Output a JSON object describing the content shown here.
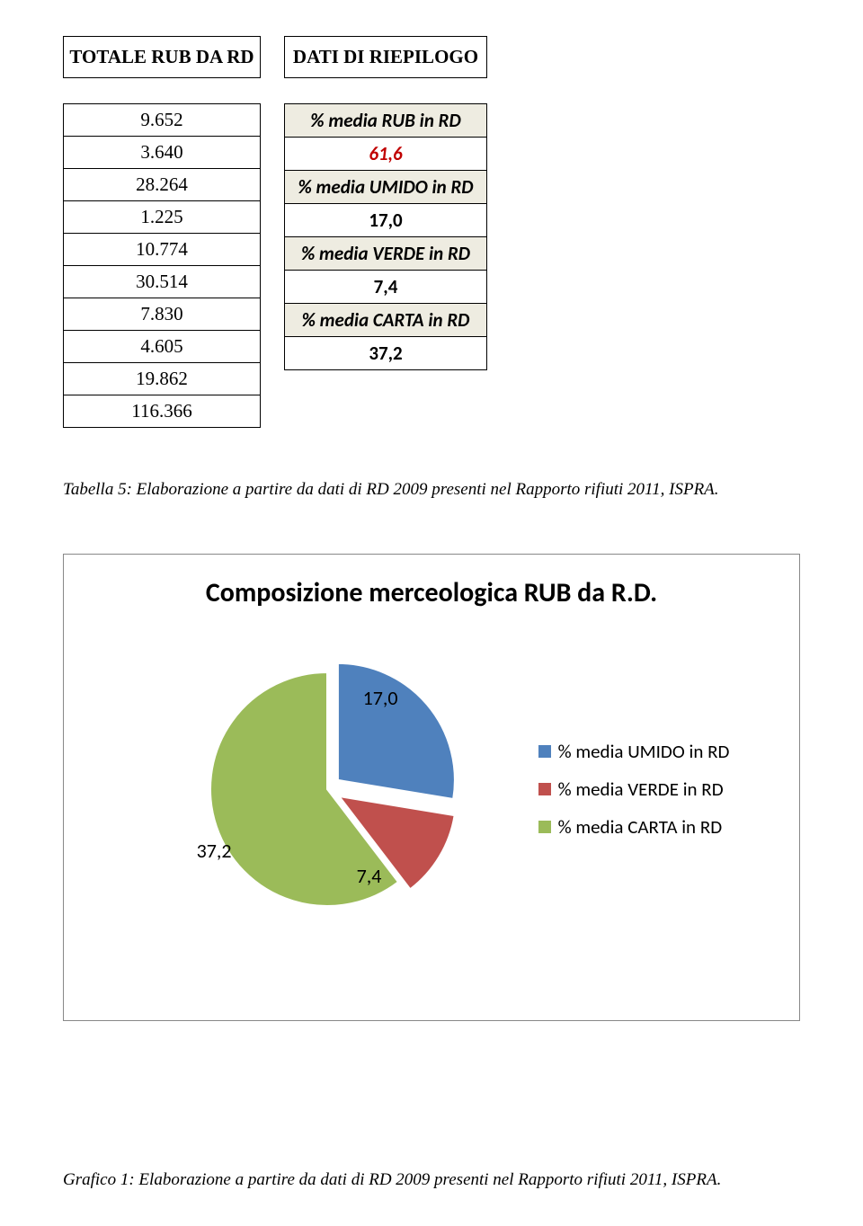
{
  "table": {
    "header_left": "TOTALE RUB DA RD",
    "header_right": "DATI DI RIEPILOGO",
    "left_values": [
      "9.652",
      "3.640",
      "28.264",
      "1.225",
      "10.774",
      "30.514",
      "7.830",
      "4.605",
      "19.862",
      "116.366"
    ],
    "right_rows": [
      {
        "text": "% media RUB in RD",
        "kind": "shade"
      },
      {
        "text": "61,6",
        "kind": "red"
      },
      {
        "text": "% media UMIDO in RD",
        "kind": "shade"
      },
      {
        "text": "17,0",
        "kind": "bold"
      },
      {
        "text": "% media VERDE in RD",
        "kind": "shade"
      },
      {
        "text": "7,4",
        "kind": "bold"
      },
      {
        "text": "% media CARTA in RD",
        "kind": "shade"
      },
      {
        "text": "37,2",
        "kind": "bold"
      }
    ]
  },
  "caption_table": "Tabella 5: Elaborazione a partire da dati di RD 2009 presenti nel Rapporto rifiuti 2011, ISPRA.",
  "chart": {
    "type": "pie",
    "title": "Composizione merceologica RUB da R.D.",
    "slices": [
      {
        "label": "% media UMIDO in RD",
        "value": 17.0,
        "display": "17,0",
        "color": "#4f81bd",
        "explode": 0.12
      },
      {
        "label": "% media VERDE in RD",
        "value": 7.4,
        "display": "7,4",
        "color": "#c0504d",
        "explode": 0.12
      },
      {
        "label": "% media CARTA in RD",
        "value": 37.2,
        "display": "37,2",
        "color": "#9bbb59",
        "explode": 0
      }
    ],
    "background_color": "#ffffff",
    "border_color": "#888888",
    "label_fontsize": 22,
    "title_fontsize": 30,
    "legend_fontsize": 21,
    "stroke_color": "#ffffff",
    "stroke_width": 2
  },
  "caption_chart": "Grafico 1: Elaborazione a partire da dati di RD 2009 presenti nel Rapporto rifiuti 2011, ISPRA."
}
